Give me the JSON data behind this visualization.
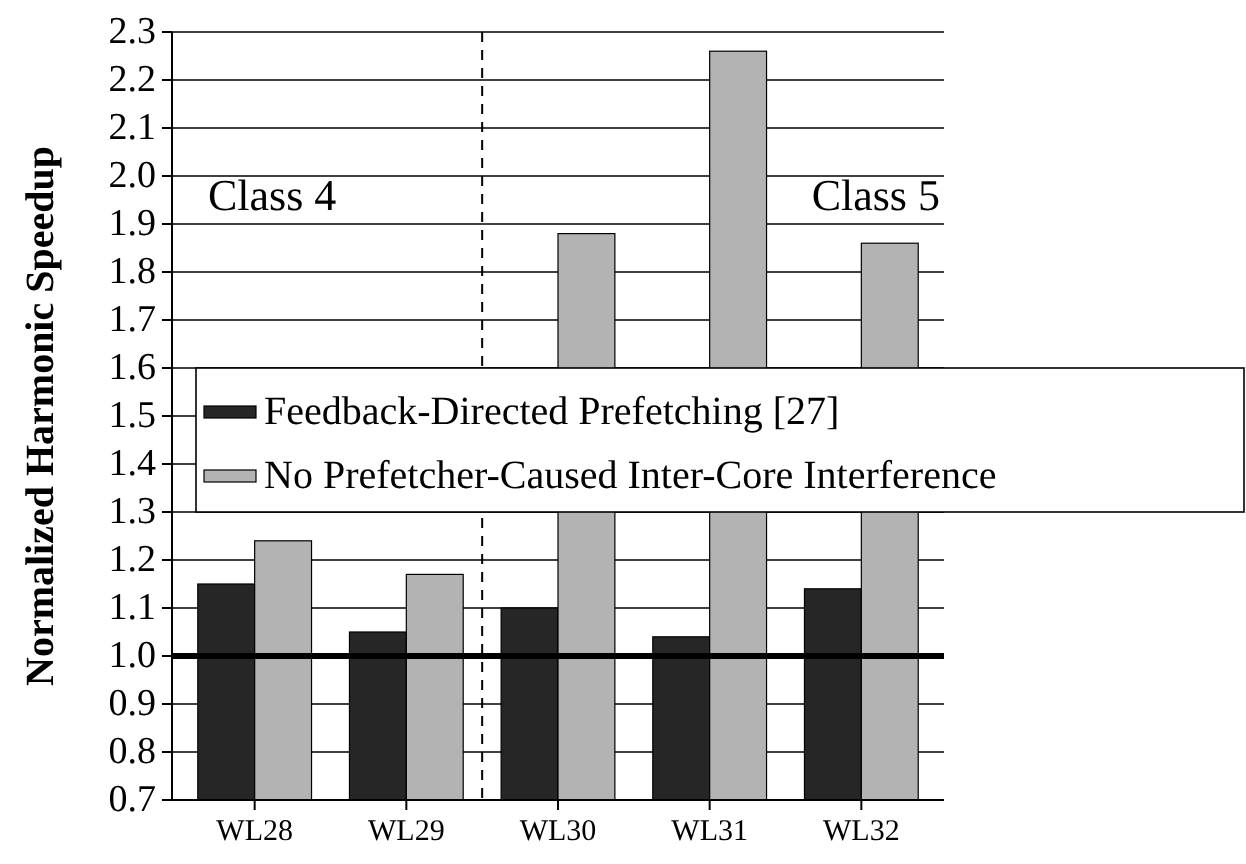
{
  "chart_data": {
    "type": "bar",
    "ylabel": "Normalized Harmonic Speedup",
    "categories": [
      "WL28",
      "WL29",
      "WL30",
      "WL31",
      "WL32"
    ],
    "series": [
      {
        "name": "Feedback-Directed Prefetching [27]",
        "color": "#262626",
        "values": [
          1.15,
          1.05,
          1.1,
          1.04,
          1.14
        ]
      },
      {
        "name": "No Prefetcher-Caused Inter-Core Interference",
        "color": "#b3b3b3",
        "values": [
          1.24,
          1.17,
          1.88,
          2.26,
          1.86
        ]
      }
    ],
    "ylim": [
      0.7,
      2.3
    ],
    "yticks": [
      0.7,
      0.8,
      0.9,
      {
        "value": 1.0,
        "label": "1.0"
      },
      1.1,
      1.2,
      1.3,
      1.4,
      1.5,
      1.6,
      1.7,
      1.8,
      1.9,
      {
        "value": 2.0,
        "label": "2.0"
      },
      2.1,
      2.2,
      2.3
    ],
    "grid": "y",
    "ref_lines": [
      {
        "axis": "y",
        "value": 1.0,
        "color": "#000000"
      }
    ],
    "annotations": [
      "Class 4",
      "Class 5"
    ],
    "legend": "right"
  }
}
